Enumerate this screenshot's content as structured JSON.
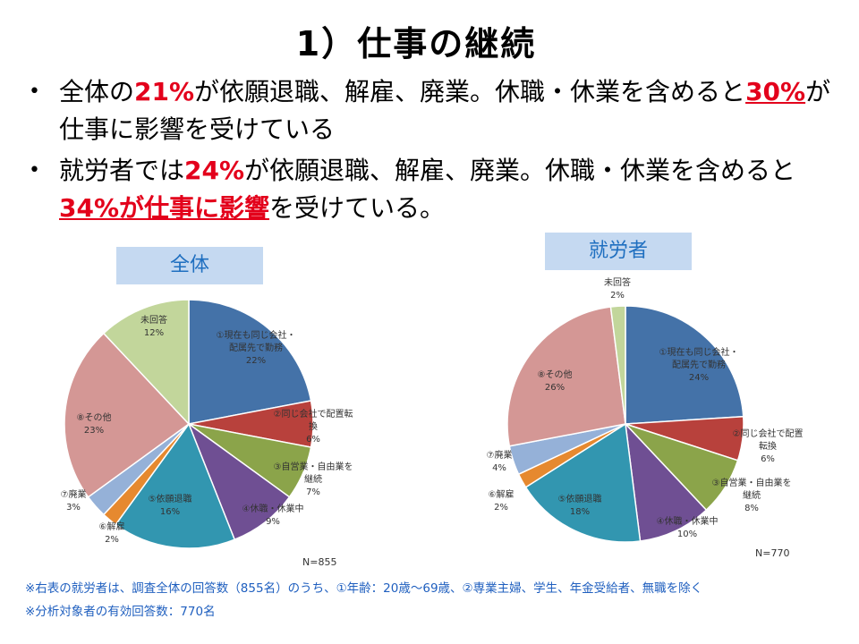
{
  "title": "1）仕事の継続",
  "bullets": [
    {
      "pre": "全体の",
      "h1": "21%",
      "mid": "が依願退職、解雇、廃業。休職・休業を含めると",
      "h2": "30%",
      "post": "が仕事に影響を受けている"
    },
    {
      "pre": "就労者では",
      "h1": "24%",
      "mid": "が依願退職、解雇、廃業。休職・休業を含めると",
      "h2": "34%が仕事に影響",
      "post": "を受けている。"
    }
  ],
  "chart_data": [
    {
      "type": "pie",
      "title": "全体",
      "n_label": "N=855",
      "slices": [
        {
          "label": [
            "①現在も同じ会社・",
            "配属先で勤務"
          ],
          "value": 22,
          "pct": "22%",
          "color": "#4472a8"
        },
        {
          "label": [
            "②同じ会社で配置転",
            "換"
          ],
          "value": 6,
          "pct": "6%",
          "color": "#b8413c"
        },
        {
          "label": [
            "③自営業・自由業を",
            "継続"
          ],
          "value": 7,
          "pct": "7%",
          "color": "#8ba44a"
        },
        {
          "label": [
            "④休職・休業中"
          ],
          "value": 9,
          "pct": "9%",
          "color": "#6f4f93"
        },
        {
          "label": [
            "⑤依願退職"
          ],
          "value": 16,
          "pct": "16%",
          "color": "#3296b0"
        },
        {
          "label": [
            "⑥解雇"
          ],
          "value": 2,
          "pct": "2%",
          "color": "#e6892f"
        },
        {
          "label": [
            "⑦廃業"
          ],
          "value": 3,
          "pct": "3%",
          "color": "#95b1d8"
        },
        {
          "label": [
            "⑧その他"
          ],
          "value": 23,
          "pct": "23%",
          "color": "#d49795"
        },
        {
          "label": [
            "未回答"
          ],
          "value": 12,
          "pct": "12%",
          "color": "#c2d69b"
        }
      ]
    },
    {
      "type": "pie",
      "title": "就労者",
      "n_label": "N=770",
      "slices": [
        {
          "label": [
            "①現在も同じ会社・",
            "配属先で勤務"
          ],
          "value": 24,
          "pct": "24%",
          "color": "#4472a8"
        },
        {
          "label": [
            "②同じ会社で配置",
            "転換"
          ],
          "value": 6,
          "pct": "6%",
          "color": "#b8413c"
        },
        {
          "label": [
            "③自営業・自由業を",
            "継続"
          ],
          "value": 8,
          "pct": "8%",
          "color": "#8ba44a"
        },
        {
          "label": [
            "④休職・休業中"
          ],
          "value": 10,
          "pct": "10%",
          "color": "#6f4f93"
        },
        {
          "label": [
            "⑤依願退職"
          ],
          "value": 18,
          "pct": "18%",
          "color": "#3296b0"
        },
        {
          "label": [
            "⑥解雇"
          ],
          "value": 2,
          "pct": "2%",
          "color": "#e6892f"
        },
        {
          "label": [
            "⑦廃業"
          ],
          "value": 4,
          "pct": "4%",
          "color": "#95b1d8"
        },
        {
          "label": [
            "⑧その他"
          ],
          "value": 26,
          "pct": "26%",
          "color": "#d49795"
        },
        {
          "label": [
            "未回答"
          ],
          "value": 2,
          "pct": "2%",
          "color": "#c2d69b"
        }
      ]
    }
  ],
  "footnotes": [
    "※右表の就労者は、調査全体の回答数（855名）のうち、①年齢：20歳〜69歳、②専業主婦、学生、年金受給者、無職を除く",
    "※分析対象者の有効回答数：770名"
  ]
}
